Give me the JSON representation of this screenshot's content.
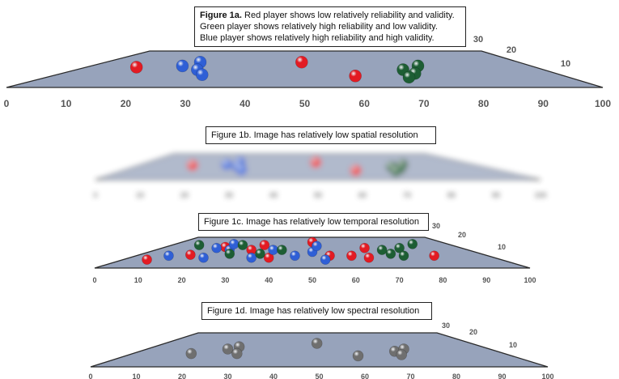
{
  "x_ticks": [
    "0",
    "10",
    "20",
    "30",
    "40",
    "50",
    "60",
    "70",
    "80",
    "90",
    "100"
  ],
  "depth_ticks": [
    "30",
    "20",
    "10"
  ],
  "colors": {
    "red": "#e31b23",
    "blue": "#2f5fd6",
    "green": "#1d5e34",
    "gray": "#6f6f6f",
    "surface": "#97a3bb"
  },
  "fig1a": {
    "label": "Figure 1a.",
    "line1": " Red player shows low relatively reliability and validity.",
    "line2": "Green player shows relatively high reliability and low validity.",
    "line3": "Blue player shows relatively high reliability and high validity."
  },
  "fig1b": {
    "caption": "Figure 1b. Image has relatively low spatial resolution"
  },
  "fig1c": {
    "caption": "Figure 1c. Image has relatively low temporal resolution"
  },
  "fig1d": {
    "caption": "Figure 1d. Image has relatively low spectral resolution"
  },
  "balls_main": [
    {
      "x": 21.8,
      "d": 0.55,
      "c": "red"
    },
    {
      "x": 49.5,
      "d": 0.75,
      "c": "red"
    },
    {
      "x": 58.5,
      "d": 0.2,
      "c": "red"
    },
    {
      "x": 29.5,
      "d": 0.6,
      "c": "blue"
    },
    {
      "x": 32.5,
      "d": 0.75,
      "c": "blue"
    },
    {
      "x": 32,
      "d": 0.45,
      "c": "blue"
    },
    {
      "x": 32.8,
      "d": 0.25,
      "c": "blue"
    },
    {
      "x": 66.5,
      "d": 0.45,
      "c": "green"
    },
    {
      "x": 69,
      "d": 0.6,
      "c": "green"
    },
    {
      "x": 68.5,
      "d": 0.3,
      "c": "green"
    },
    {
      "x": 67.5,
      "d": 0.15,
      "c": "green"
    }
  ],
  "balls_temporal": [
    {
      "x": 12,
      "d": 0.1,
      "c": "red"
    },
    {
      "x": 22,
      "d": 0.35,
      "c": "red"
    },
    {
      "x": 30,
      "d": 0.75,
      "c": "red"
    },
    {
      "x": 36,
      "d": 0.6,
      "c": "red"
    },
    {
      "x": 39,
      "d": 0.85,
      "c": "red"
    },
    {
      "x": 40,
      "d": 0.2,
      "c": "red"
    },
    {
      "x": 50,
      "d": 1.0,
      "c": "red"
    },
    {
      "x": 54,
      "d": 0.3,
      "c": "red"
    },
    {
      "x": 59,
      "d": 0.3,
      "c": "red"
    },
    {
      "x": 62,
      "d": 0.7,
      "c": "red"
    },
    {
      "x": 63,
      "d": 0.2,
      "c": "red"
    },
    {
      "x": 78,
      "d": 0.3,
      "c": "red"
    },
    {
      "x": 17,
      "d": 0.3,
      "c": "blue"
    },
    {
      "x": 25,
      "d": 0.2,
      "c": "blue"
    },
    {
      "x": 28,
      "d": 0.7,
      "c": "blue"
    },
    {
      "x": 31,
      "d": 0.6,
      "c": "blue"
    },
    {
      "x": 32,
      "d": 0.9,
      "c": "blue"
    },
    {
      "x": 36,
      "d": 0.2,
      "c": "blue"
    },
    {
      "x": 41,
      "d": 0.6,
      "c": "blue"
    },
    {
      "x": 46,
      "d": 0.3,
      "c": "blue"
    },
    {
      "x": 50,
      "d": 0.5,
      "c": "blue"
    },
    {
      "x": 51,
      "d": 0.8,
      "c": "blue"
    },
    {
      "x": 53,
      "d": 0.1,
      "c": "blue"
    },
    {
      "x": 24,
      "d": 0.85,
      "c": "green"
    },
    {
      "x": 31,
      "d": 0.4,
      "c": "green"
    },
    {
      "x": 34,
      "d": 0.85,
      "c": "green"
    },
    {
      "x": 38,
      "d": 0.4,
      "c": "green"
    },
    {
      "x": 43,
      "d": 0.6,
      "c": "green"
    },
    {
      "x": 66,
      "d": 0.6,
      "c": "green"
    },
    {
      "x": 68,
      "d": 0.4,
      "c": "green"
    },
    {
      "x": 70,
      "d": 0.7,
      "c": "green"
    },
    {
      "x": 71,
      "d": 0.3,
      "c": "green"
    },
    {
      "x": 73,
      "d": 0.9,
      "c": "green"
    }
  ],
  "balls_spectral": [
    {
      "x": 22,
      "d": 0.3,
      "c": "gray"
    },
    {
      "x": 30,
      "d": 0.5,
      "c": "gray"
    },
    {
      "x": 32.5,
      "d": 0.6,
      "c": "gray"
    },
    {
      "x": 32,
      "d": 0.3,
      "c": "gray"
    },
    {
      "x": 49.5,
      "d": 0.75,
      "c": "gray"
    },
    {
      "x": 58.5,
      "d": 0.2,
      "c": "gray"
    },
    {
      "x": 66.5,
      "d": 0.4,
      "c": "gray"
    },
    {
      "x": 68.5,
      "d": 0.5,
      "c": "gray"
    },
    {
      "x": 68,
      "d": 0.25,
      "c": "gray"
    }
  ]
}
